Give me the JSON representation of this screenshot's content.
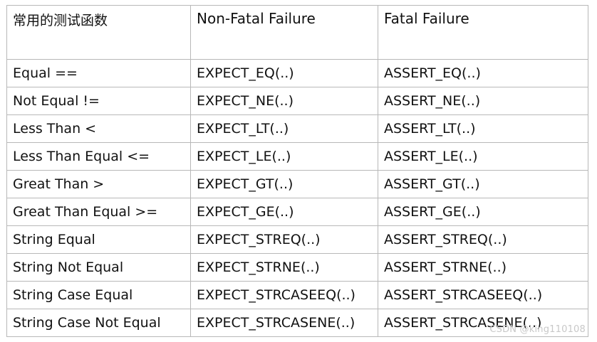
{
  "header": {
    "col1": "常用的测试函数",
    "col2": "Non-Fatal Failure",
    "col3": "Fatal Failure"
  },
  "rows": [
    {
      "name": "Equal   ==",
      "non_fatal": "EXPECT_EQ(..)",
      "fatal": "ASSERT_EQ(..)"
    },
    {
      "name": "Not Equal  !=",
      "non_fatal": "EXPECT_NE(..)",
      "fatal": "ASSERT_NE(..)"
    },
    {
      "name": "Less Than <",
      "non_fatal": "EXPECT_LT(..)",
      "fatal": "ASSERT_LT(..)"
    },
    {
      "name": "Less Than Equal  <=",
      "non_fatal": "EXPECT_LE(..)",
      "fatal": "ASSERT_LE(..)"
    },
    {
      "name": "Great Than  >",
      "non_fatal": "EXPECT_GT(..)",
      "fatal": "ASSERT_GT(..)"
    },
    {
      "name": "Great Than Equal >=",
      "non_fatal": "EXPECT_GE(..)",
      "fatal": "ASSERT_GE(..)"
    },
    {
      "name": "String Equal",
      "non_fatal": "EXPECT_STREQ(..)",
      "fatal": "ASSERT_STREQ(..)"
    },
    {
      "name": "String Not Equal",
      "non_fatal": "EXPECT_STRNE(..)",
      "fatal": "ASSERT_STRNE(..)"
    },
    {
      "name": "String Case Equal",
      "non_fatal": "EXPECT_STRCASEEQ(..)",
      "fatal": "ASSERT_STRCASEEQ(..)"
    },
    {
      "name": "String Case Not Equal",
      "non_fatal": "EXPECT_STRCASENE(..)",
      "fatal": "ASSERT_STRCASENE(..)"
    }
  ],
  "watermark": "CSDN @king110108"
}
